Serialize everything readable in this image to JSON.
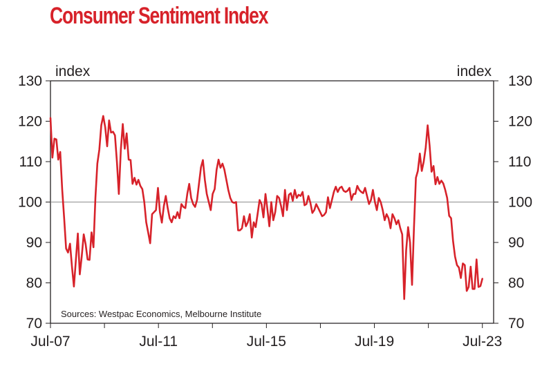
{
  "chart_data": {
    "type": "line",
    "title": "Consumer Sentiment Index",
    "ylabel_left": "index",
    "ylabel_right": "index",
    "xlabel": "",
    "ylim": [
      70,
      130
    ],
    "yticks": [
      70,
      80,
      90,
      100,
      110,
      120,
      130
    ],
    "yticks_right": [
      70,
      80,
      90,
      100,
      110,
      120,
      130
    ],
    "xtick_labels": [
      "Jul-07",
      "Jul-11",
      "Jul-15",
      "Jul-19",
      "Jul-23"
    ],
    "x_start": "Jul-07",
    "x_end": "Jul-23",
    "frequency": "monthly",
    "reference_line": 100,
    "annotation": "Sources: Westpac Economics, Melbourne Institute",
    "grid": false,
    "series": [
      {
        "name": "Consumer Sentiment Index",
        "color": "#d7222a",
        "values": [
          120.8,
          111.0,
          115.7,
          115.5,
          110.5,
          112.4,
          103.0,
          96.0,
          88.5,
          87.5,
          89.7,
          84.0,
          79.1,
          85.5,
          92.2,
          82.1,
          86.5,
          92.0,
          89.5,
          85.8,
          85.7,
          92.5,
          88.8,
          101.0,
          109.5,
          113.0,
          119.0,
          121.3,
          118.5,
          113.8,
          120.2,
          117.2,
          117.4,
          116.5,
          110.0,
          102.0,
          113.0,
          119.3,
          113.2,
          117.0,
          110.5,
          110.4,
          104.5,
          106.0,
          104.3,
          105.5,
          104.0,
          103.2,
          100.0,
          95.0,
          92.5,
          89.8,
          97.0,
          97.5,
          98.0,
          103.5,
          97.5,
          94.9,
          99.0,
          101.5,
          98.5,
          96.0,
          95.0,
          96.5,
          96.0,
          97.5,
          96.0,
          99.5,
          98.8,
          98.5,
          102.0,
          104.5,
          101.0,
          99.5,
          98.8,
          100.5,
          104.5,
          108.6,
          110.4,
          105.5,
          102.0,
          100.0,
          98.0,
          102.0,
          103.2,
          108.0,
          110.5,
          108.5,
          109.5,
          108.0,
          105.5,
          103.0,
          101.0,
          100.0,
          99.8,
          100.0,
          93.0,
          93.0,
          93.5,
          96.5,
          94.0,
          95.0,
          97.0,
          91.2,
          95.0,
          93.8,
          97.0,
          100.5,
          99.5,
          96.2,
          102.0,
          98.2,
          94.0,
          100.0,
          95.5,
          97.5,
          101.5,
          101.0,
          99.0,
          96.5,
          103.0,
          98.0,
          101.8,
          102.2,
          100.3,
          103.0,
          101.0,
          101.8,
          101.5,
          102.5,
          99.2,
          99.5,
          101.5,
          99.8,
          97.3,
          98.0,
          99.5,
          98.5,
          97.5,
          96.5,
          96.8,
          97.5,
          101.2,
          98.5,
          100.5,
          102.5,
          103.8,
          102.5,
          103.5,
          103.8,
          102.8,
          102.5,
          102.8,
          103.5,
          100.5,
          102.0,
          102.0,
          104.0,
          103.0,
          102.5,
          102.2,
          103.5,
          101.5,
          99.5,
          100.5,
          103.0,
          100.0,
          98.0,
          101.0,
          100.0,
          98.0,
          95.5,
          97.0,
          96.0,
          93.5,
          97.0,
          96.0,
          94.5,
          95.5,
          93.5,
          92.0,
          76.0,
          88.1,
          93.8,
          90.0,
          79.5,
          93.7,
          106.0,
          107.7,
          112.0,
          107.7,
          110.0,
          113.5,
          119.0,
          114.0,
          107.5,
          108.9,
          104.4,
          106.2,
          104.5,
          105.3,
          104.6,
          103.0,
          101.0,
          96.6,
          96.0,
          90.4,
          86.5,
          84.4,
          83.8,
          81.2,
          84.8,
          84.4,
          78.0,
          79.0,
          84.0,
          78.5,
          78.5,
          85.8,
          79.0,
          79.2,
          81.0
        ]
      }
    ]
  }
}
